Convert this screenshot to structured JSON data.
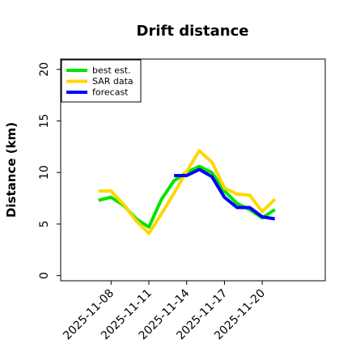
{
  "chart_data": {
    "type": "line",
    "title": "Drift distance",
    "xlabel": "",
    "ylabel": "Distance (km)",
    "ylim": [
      -0.5,
      21
    ],
    "yticks": [
      0,
      5,
      10,
      15,
      20
    ],
    "xlim": [
      "2025-11-04",
      "2025-11-25"
    ],
    "xticks": [
      "2025-11-08",
      "2025-11-11",
      "2025-11-14",
      "2025-11-17",
      "2025-11-20"
    ],
    "grid": false,
    "legend_position": "top-left",
    "series": [
      {
        "name": "best est.",
        "color": "#00e400",
        "points": [
          [
            "2025-11-07",
            7.3
          ],
          [
            "2025-11-08",
            7.6
          ],
          [
            "2025-11-09",
            6.8
          ],
          [
            "2025-11-10",
            5.5
          ],
          [
            "2025-11-11",
            4.7
          ],
          [
            "2025-11-12",
            7.4
          ],
          [
            "2025-11-13",
            9.2
          ],
          [
            "2025-11-14",
            10.0
          ],
          [
            "2025-11-15",
            10.6
          ],
          [
            "2025-11-16",
            10.0
          ],
          [
            "2025-11-17",
            8.2
          ],
          [
            "2025-11-18",
            7.0
          ],
          [
            "2025-11-19",
            6.4
          ],
          [
            "2025-11-20",
            5.6
          ],
          [
            "2025-11-21",
            6.4
          ]
        ]
      },
      {
        "name": "SAR data",
        "color": "#ffd700",
        "points": [
          [
            "2025-11-07",
            8.2
          ],
          [
            "2025-11-08",
            8.2
          ],
          [
            "2025-11-09",
            6.9
          ],
          [
            "2025-11-10",
            5.3
          ],
          [
            "2025-11-11",
            4.1
          ],
          [
            "2025-11-12",
            6.0
          ],
          [
            "2025-11-13",
            8.0
          ],
          [
            "2025-11-14",
            10.1
          ],
          [
            "2025-11-15",
            12.1
          ],
          [
            "2025-11-16",
            11.0
          ],
          [
            "2025-11-17",
            8.5
          ],
          [
            "2025-11-18",
            7.9
          ],
          [
            "2025-11-19",
            7.8
          ],
          [
            "2025-11-20",
            6.2
          ],
          [
            "2025-11-21",
            7.4
          ]
        ]
      },
      {
        "name": "forecast",
        "color": "#0000ff",
        "points": [
          [
            "2025-11-13",
            9.7
          ],
          [
            "2025-11-14",
            9.7
          ],
          [
            "2025-11-15",
            10.3
          ],
          [
            "2025-11-16",
            9.6
          ],
          [
            "2025-11-17",
            7.6
          ],
          [
            "2025-11-18",
            6.6
          ],
          [
            "2025-11-19",
            6.6
          ],
          [
            "2025-11-20",
            5.7
          ],
          [
            "2025-11-21",
            5.5
          ]
        ]
      }
    ]
  }
}
